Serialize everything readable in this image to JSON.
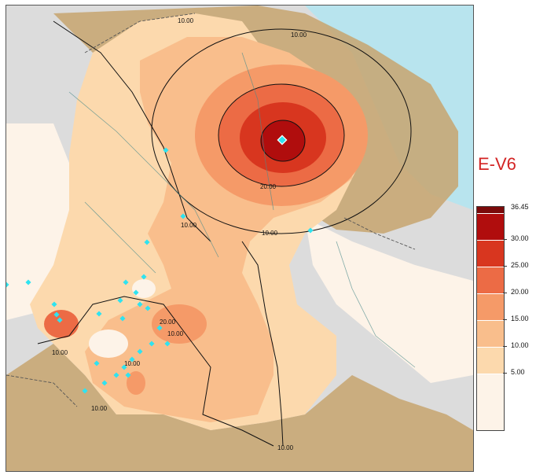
{
  "product": {
    "title": "E-V6"
  },
  "legend": {
    "max_label": "36.45",
    "classes": [
      {
        "label": "30.00",
        "color": "#b00d0d"
      },
      {
        "label": "25.00",
        "color": "#d8361f"
      },
      {
        "label": "20.00",
        "color": "#ec6b45"
      },
      {
        "label": "15.00",
        "color": "#f59a68"
      },
      {
        "label": "10.00",
        "color": "#f9be8c"
      },
      {
        "label": "5.00",
        "color": "#fcd9ad"
      },
      {
        "label": "",
        "color": "#fdf3e8"
      }
    ],
    "top_color": "#7a0a0a"
  },
  "contour_labels": [
    "10.00",
    "10.00",
    "10.00",
    "10.00",
    "20.00",
    "20.00",
    "10.00",
    "10.00",
    "10.00",
    "10.00",
    "10.00"
  ],
  "colors": {
    "water": "#b8e4ee",
    "outside": "#dcdcdc",
    "station": "#2fe3f0",
    "border": "#555555",
    "river": "#4b8c8c"
  },
  "stations_visible": true
}
